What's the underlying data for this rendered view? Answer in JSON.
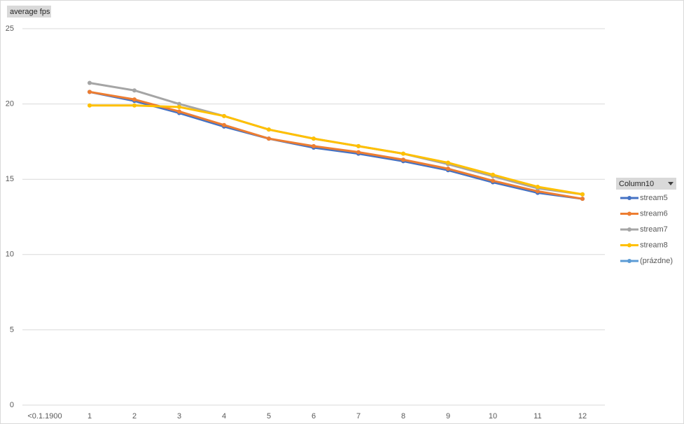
{
  "chart_data": {
    "type": "line",
    "ylabel": "average fps",
    "legend_title": "Column10",
    "legend": "right",
    "grid": true,
    "categories": [
      "<0.1.1900",
      "1",
      "2",
      "3",
      "4",
      "5",
      "6",
      "7",
      "8",
      "9",
      "10",
      "11",
      "12"
    ],
    "ylim": [
      0,
      25
    ],
    "yticks": [
      0,
      5,
      10,
      15,
      20,
      25
    ],
    "series": [
      {
        "name": "stream5",
        "color": "#4472c4",
        "values": [
          null,
          20.8,
          20.2,
          19.4,
          18.5,
          17.7,
          17.1,
          16.7,
          16.2,
          15.6,
          14.8,
          14.1,
          13.7
        ]
      },
      {
        "name": "stream6",
        "color": "#ed7d31",
        "values": [
          null,
          20.8,
          20.3,
          19.5,
          18.6,
          17.7,
          17.2,
          16.8,
          16.3,
          15.7,
          14.9,
          14.2,
          13.7
        ]
      },
      {
        "name": "stream7",
        "color": "#a5a5a5",
        "values": [
          null,
          21.4,
          20.9,
          20.0,
          19.2,
          18.3,
          17.7,
          17.2,
          16.7,
          16.0,
          15.2,
          14.4,
          14.0
        ]
      },
      {
        "name": "stream8",
        "color": "#ffc000",
        "values": [
          null,
          19.9,
          19.9,
          19.8,
          19.2,
          18.3,
          17.7,
          17.2,
          16.7,
          16.1,
          15.3,
          14.5,
          14.0
        ]
      },
      {
        "name": "(prázdne)",
        "color": "#5b9bd5",
        "values": [
          null,
          null,
          null,
          null,
          null,
          null,
          null,
          null,
          null,
          null,
          null,
          null,
          null
        ]
      }
    ]
  }
}
